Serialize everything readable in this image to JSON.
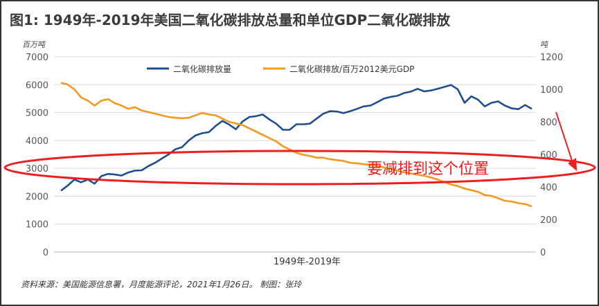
{
  "chart_data": {
    "type": "line",
    "title": "图1: 1949年-2019年美国二氧化碳排放总量和单位GDP二氧化碳排放",
    "xlabel": "1949年-2019年",
    "ylabel_left": "百万吨",
    "ylabel_right": "吨",
    "ylim_left": [
      0,
      7000
    ],
    "ylim_right": [
      0,
      1200
    ],
    "yticks_left": [
      "0",
      "1000",
      "2000",
      "3000",
      "4000",
      "5000",
      "6000",
      "7000"
    ],
    "yticks_right": [
      "0",
      "200",
      "400",
      "600",
      "800",
      "1000",
      "1200"
    ],
    "grid": true,
    "legend_position": "top",
    "x": [
      1949,
      1950,
      1951,
      1952,
      1953,
      1954,
      1955,
      1956,
      1957,
      1958,
      1959,
      1960,
      1961,
      1962,
      1963,
      1964,
      1965,
      1966,
      1967,
      1968,
      1969,
      1970,
      1971,
      1972,
      1973,
      1974,
      1975,
      1976,
      1977,
      1978,
      1979,
      1980,
      1981,
      1982,
      1983,
      1984,
      1985,
      1986,
      1987,
      1988,
      1989,
      1990,
      1991,
      1992,
      1993,
      1994,
      1995,
      1996,
      1997,
      1998,
      1999,
      2000,
      2001,
      2002,
      2003,
      2004,
      2005,
      2006,
      2007,
      2008,
      2009,
      2010,
      2011,
      2012,
      2013,
      2014,
      2015,
      2016,
      2017,
      2018,
      2019
    ],
    "series": [
      {
        "name": "二氧化碳排放量",
        "axis": "left",
        "color": "#1f4e8c",
        "values": [
          2200,
          2380,
          2600,
          2500,
          2600,
          2450,
          2720,
          2800,
          2780,
          2740,
          2850,
          2920,
          2930,
          3080,
          3200,
          3350,
          3500,
          3680,
          3760,
          4000,
          4180,
          4260,
          4300,
          4520,
          4700,
          4570,
          4400,
          4680,
          4840,
          4870,
          4930,
          4750,
          4600,
          4380,
          4380,
          4580,
          4580,
          4600,
          4780,
          4960,
          5050,
          5040,
          4980,
          5050,
          5130,
          5220,
          5250,
          5370,
          5500,
          5560,
          5600,
          5700,
          5750,
          5850,
          5760,
          5790,
          5850,
          5920,
          5990,
          5830,
          5350,
          5580,
          5460,
          5220,
          5350,
          5400,
          5250,
          5150,
          5120,
          5270,
          5130
        ]
      },
      {
        "name": "二氧化碳排放/百万2012美元GDP",
        "axis": "right",
        "color": "#f39a1e",
        "values": [
          1040,
          1030,
          1000,
          950,
          930,
          900,
          930,
          940,
          915,
          900,
          880,
          890,
          870,
          860,
          850,
          840,
          830,
          825,
          822,
          825,
          840,
          855,
          845,
          840,
          820,
          800,
          790,
          780,
          760,
          740,
          720,
          700,
          680,
          650,
          630,
          610,
          598,
          590,
          580,
          580,
          570,
          565,
          560,
          548,
          545,
          540,
          535,
          530,
          520,
          510,
          500,
          490,
          483,
          475,
          468,
          458,
          445,
          430,
          415,
          405,
          390,
          380,
          370,
          350,
          345,
          330,
          315,
          310,
          300,
          295,
          280
        ]
      }
    ],
    "annotation": "要减排到这个位置"
  },
  "source_note": "资料来源：美国能源信息署，月度能源评论，2021年1月26日。     制图：张玲"
}
